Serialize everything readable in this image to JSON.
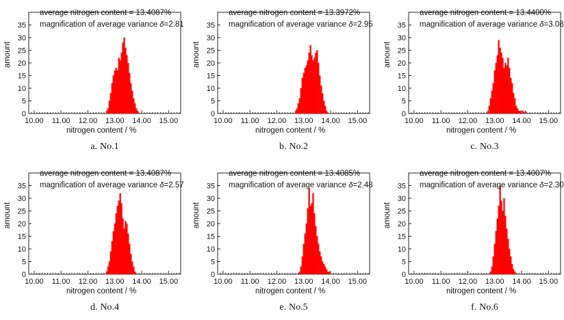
{
  "chart_data": [
    {
      "type": "bar",
      "panel": "a",
      "caption_letter": "a.",
      "caption_text": "No.1",
      "annotation_line1": "average nitrogen content = 13.4087%",
      "annotation_line2_prefix": "magnification of average variance ",
      "annotation_line2_symbol": "δ",
      "annotation_line2_value": "=2.81",
      "xlabel": "nitrogen content / %",
      "ylabel": "amount",
      "xlim": [
        9.8,
        15.45
      ],
      "ylim": [
        0,
        40
      ],
      "xticks": [
        "10.00",
        "11.00",
        "12.00",
        "13.00",
        "14.00",
        "15.00"
      ],
      "yticks": [
        "0",
        "5",
        "10",
        "15",
        "20",
        "25",
        "30",
        "35"
      ],
      "bin_width": 0.05,
      "grid": false,
      "color": "#ff0000",
      "x": [
        12.7,
        12.75,
        12.8,
        12.85,
        12.9,
        12.95,
        13.0,
        13.05,
        13.1,
        13.15,
        13.2,
        13.25,
        13.3,
        13.35,
        13.4,
        13.45,
        13.5,
        13.55,
        13.6,
        13.65,
        13.7,
        13.75,
        13.8,
        13.85
      ],
      "values": [
        1,
        2,
        5,
        8,
        12,
        15,
        17,
        18,
        17,
        22,
        21,
        24,
        28,
        30,
        26,
        23,
        20,
        16,
        12,
        9,
        6,
        4,
        2,
        1
      ]
    },
    {
      "type": "bar",
      "panel": "b",
      "caption_letter": "b.",
      "caption_text": "No.2",
      "annotation_line1": "average nitrogen content = 13.3972%",
      "annotation_line2_prefix": "magnification of average variance ",
      "annotation_line2_symbol": "δ",
      "annotation_line2_value": "=2.95",
      "xlabel": "nitrogen content / %",
      "ylabel": "amount",
      "xlim": [
        9.8,
        15.45
      ],
      "ylim": [
        0,
        40
      ],
      "xticks": [
        "10.00",
        "11.00",
        "12.00",
        "13.00",
        "14.00",
        "15.00"
      ],
      "yticks": [
        "0",
        "5",
        "10",
        "15",
        "20",
        "25",
        "30",
        "35"
      ],
      "bin_width": 0.05,
      "grid": false,
      "color": "#ff0000",
      "x": [
        12.7,
        12.75,
        12.8,
        12.85,
        12.9,
        12.95,
        13.0,
        13.05,
        13.1,
        13.15,
        13.2,
        13.25,
        13.3,
        13.35,
        13.4,
        13.45,
        13.5,
        13.55,
        13.6,
        13.65,
        13.7,
        13.75,
        13.8,
        13.85
      ],
      "values": [
        1,
        2,
        4,
        6,
        10,
        14,
        16,
        18,
        19,
        21,
        24,
        27,
        23,
        21,
        22,
        24,
        25,
        20,
        15,
        11,
        8,
        5,
        3,
        1
      ]
    },
    {
      "type": "bar",
      "panel": "c",
      "caption_letter": "c.",
      "caption_text": "No.3",
      "annotation_line1": "average nitrogen content = 13.4400%",
      "annotation_line2_prefix": "magnification of average variance ",
      "annotation_line2_symbol": "δ",
      "annotation_line2_value": "=3.08",
      "xlabel": "nitrogen content / %",
      "ylabel": "amount",
      "xlim": [
        9.8,
        15.45
      ],
      "ylim": [
        0,
        40
      ],
      "xticks": [
        "10.00",
        "11.00",
        "12.00",
        "13.00",
        "14.00",
        "15.00"
      ],
      "yticks": [
        "0",
        "5",
        "10",
        "15",
        "20",
        "25",
        "30",
        "35"
      ],
      "bin_width": 0.05,
      "grid": false,
      "color": "#ff0000",
      "x": [
        12.75,
        12.8,
        12.85,
        12.9,
        12.95,
        13.0,
        13.05,
        13.1,
        13.15,
        13.2,
        13.25,
        13.3,
        13.35,
        13.4,
        13.45,
        13.5,
        13.55,
        13.6,
        13.65,
        13.7,
        13.75,
        13.8,
        13.85,
        13.9,
        13.95,
        14.05,
        14.15
      ],
      "values": [
        1,
        3,
        6,
        9,
        12,
        17,
        20,
        23,
        29,
        26,
        24,
        22,
        18,
        20,
        19,
        22,
        18,
        14,
        12,
        8,
        6,
        3,
        2,
        1,
        1,
        1,
        1
      ]
    },
    {
      "type": "bar",
      "panel": "d",
      "caption_letter": "d.",
      "caption_text": "No.4",
      "annotation_line1": "average nitrogen content = 13.4087%",
      "annotation_line2_prefix": "magnification of average variance ",
      "annotation_line2_symbol": "δ",
      "annotation_line2_value": "=2.57",
      "xlabel": "nitrogen content / %",
      "ylabel": "amount",
      "xlim": [
        9.8,
        15.45
      ],
      "ylim": [
        0,
        40
      ],
      "xticks": [
        "10.00",
        "11.00",
        "12.00",
        "13.00",
        "14.00",
        "15.00"
      ],
      "yticks": [
        "0",
        "5",
        "10",
        "15",
        "20",
        "25",
        "30",
        "35"
      ],
      "bin_width": 0.05,
      "grid": false,
      "color": "#ff0000",
      "x": [
        12.7,
        12.75,
        12.8,
        12.85,
        12.9,
        12.95,
        13.0,
        13.05,
        13.1,
        13.15,
        13.2,
        13.25,
        13.3,
        13.35,
        13.4,
        13.45,
        13.5,
        13.55,
        13.6,
        13.65,
        13.7,
        13.75
      ],
      "values": [
        1,
        3,
        5,
        9,
        13,
        17,
        20,
        24,
        27,
        29,
        32,
        28,
        22,
        18,
        21,
        20,
        16,
        12,
        8,
        5,
        3,
        1
      ]
    },
    {
      "type": "bar",
      "panel": "e",
      "caption_letter": "e.",
      "caption_text": "No.5",
      "annotation_line1": "average nitrogen content = 13.4085%",
      "annotation_line2_prefix": "magnification of average variance ",
      "annotation_line2_symbol": "δ",
      "annotation_line2_value": "=2.48",
      "xlabel": "nitrogen content / %",
      "ylabel": "amount",
      "xlim": [
        9.8,
        15.45
      ],
      "ylim": [
        0,
        40
      ],
      "xticks": [
        "10.00",
        "11.00",
        "12.00",
        "13.00",
        "14.00",
        "15.00"
      ],
      "yticks": [
        "0",
        "5",
        "10",
        "15",
        "20",
        "25",
        "30",
        "35"
      ],
      "bin_width": 0.05,
      "grid": false,
      "color": "#ff0000",
      "x": [
        12.85,
        12.9,
        12.95,
        13.0,
        13.05,
        13.1,
        13.15,
        13.2,
        13.25,
        13.3,
        13.35,
        13.4,
        13.45,
        13.5,
        13.55,
        13.6,
        13.65,
        13.7,
        13.75,
        13.8,
        13.85,
        13.9,
        13.95
      ],
      "values": [
        1,
        3,
        7,
        12,
        16,
        20,
        26,
        34,
        27,
        28,
        32,
        24,
        19,
        15,
        12,
        9,
        7,
        5,
        4,
        3,
        2,
        1,
        1
      ]
    },
    {
      "type": "bar",
      "panel": "f",
      "caption_letter": "f.",
      "caption_text": "No.6",
      "annotation_line1": "average nitrogen content = 13.4007%",
      "annotation_line2_prefix": "magnification of average variance ",
      "annotation_line2_symbol": "δ",
      "annotation_line2_value": "=2.30",
      "xlabel": "nitrogen content / %",
      "ylabel": "amount",
      "xlim": [
        9.8,
        15.45
      ],
      "ylim": [
        0,
        40
      ],
      "xticks": [
        "10.00",
        "11.00",
        "12.00",
        "13.00",
        "14.00",
        "15.00"
      ],
      "yticks": [
        "0",
        "5",
        "10",
        "15",
        "20",
        "25",
        "30",
        "35"
      ],
      "bin_width": 0.05,
      "grid": false,
      "color": "#ff0000",
      "x": [
        12.85,
        12.9,
        12.95,
        13.0,
        13.05,
        13.1,
        13.15,
        13.2,
        13.25,
        13.3,
        13.35,
        13.4,
        13.45,
        13.5,
        13.55,
        13.6,
        13.65,
        13.7,
        13.75
      ],
      "values": [
        1,
        3,
        7,
        12,
        17,
        22,
        27,
        35,
        29,
        25,
        30,
        23,
        18,
        14,
        10,
        7,
        4,
        2,
        1
      ]
    }
  ]
}
